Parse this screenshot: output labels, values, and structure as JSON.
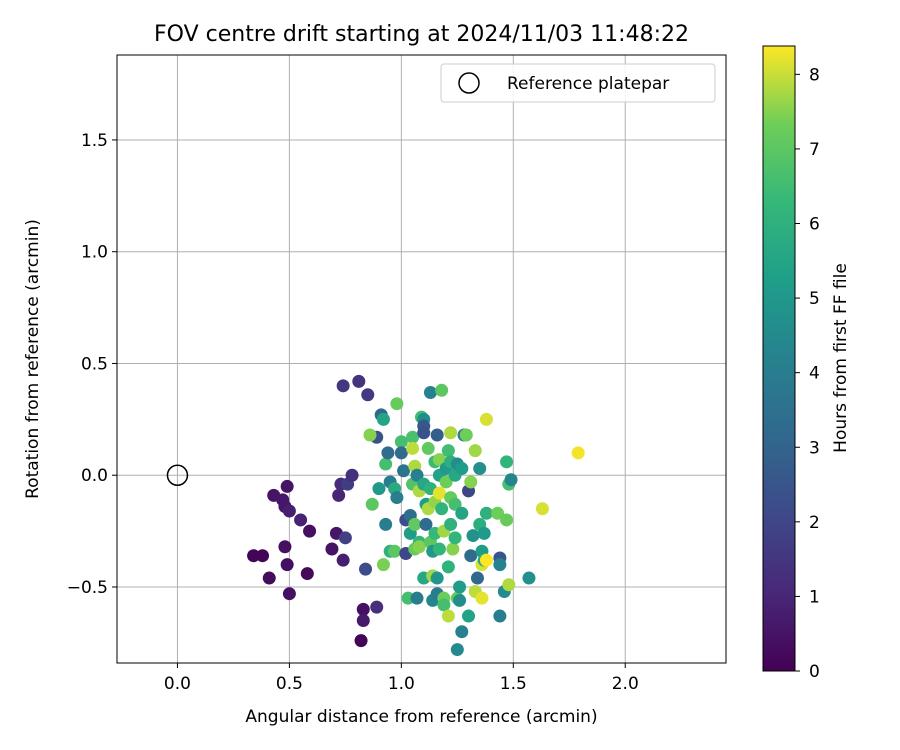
{
  "chart_data": {
    "type": "scatter",
    "title": "FOV centre drift starting at 2024/11/03 11:48:22",
    "xlabel": "Angular distance from reference (arcmin)",
    "ylabel": "Rotation from reference (arcmin)",
    "xlim": [
      -0.27,
      2.45
    ],
    "ylim": [
      -0.84,
      1.88
    ],
    "xticks": [
      0.0,
      0.5,
      1.0,
      1.5,
      2.0
    ],
    "xtick_labels": [
      "0.0",
      "0.5",
      "1.0",
      "1.5",
      "2.0"
    ],
    "yticks": [
      -0.5,
      0.0,
      0.5,
      1.0,
      1.5
    ],
    "ytick_labels": [
      "−0.5",
      "0.0",
      "0.5",
      "1.0",
      "1.5"
    ],
    "grid": true,
    "legend": {
      "position": "top-right",
      "entries": [
        "Reference platepar"
      ]
    },
    "reference_point": {
      "x": 0.0,
      "y": 0.0
    },
    "colorbar": {
      "label": "Hours from first FF file",
      "colormap": "viridis",
      "min": 0,
      "max": 8.38,
      "ticks": [
        0,
        1,
        2,
        3,
        4,
        5,
        6,
        7,
        8
      ],
      "tick_labels": [
        "0",
        "1",
        "2",
        "3",
        "4",
        "5",
        "6",
        "7",
        "8"
      ]
    },
    "points": [
      {
        "x": 0.34,
        "y": -0.36,
        "t": 0.1
      },
      {
        "x": 0.38,
        "y": -0.36,
        "t": 0.1
      },
      {
        "x": 0.41,
        "y": -0.46,
        "t": 0.3
      },
      {
        "x": 0.43,
        "y": -0.09,
        "t": 0.5
      },
      {
        "x": 0.47,
        "y": -0.11,
        "t": 0.6
      },
      {
        "x": 0.49,
        "y": -0.05,
        "t": 0.5
      },
      {
        "x": 0.48,
        "y": -0.14,
        "t": 0.6
      },
      {
        "x": 0.5,
        "y": -0.16,
        "t": 0.8
      },
      {
        "x": 0.48,
        "y": -0.32,
        "t": 0.4
      },
      {
        "x": 0.49,
        "y": -0.4,
        "t": 0.4
      },
      {
        "x": 0.5,
        "y": -0.53,
        "t": 0.4
      },
      {
        "x": 0.55,
        "y": -0.2,
        "t": 0.9
      },
      {
        "x": 0.58,
        "y": -0.44,
        "t": 0.2
      },
      {
        "x": 0.59,
        "y": -0.25,
        "t": 0.4
      },
      {
        "x": 0.69,
        "y": -0.33,
        "t": 0.5
      },
      {
        "x": 0.71,
        "y": -0.26,
        "t": 0.6
      },
      {
        "x": 0.72,
        "y": -0.09,
        "t": 1.0
      },
      {
        "x": 0.73,
        "y": -0.04,
        "t": 1.2
      },
      {
        "x": 0.74,
        "y": -0.38,
        "t": 0.8
      },
      {
        "x": 0.75,
        "y": -0.28,
        "t": 1.8
      },
      {
        "x": 0.76,
        "y": -0.04,
        "t": 1.7
      },
      {
        "x": 0.78,
        "y": 0.0,
        "t": 1.3
      },
      {
        "x": 0.74,
        "y": 0.4,
        "t": 1.5
      },
      {
        "x": 0.81,
        "y": 0.42,
        "t": 1.4
      },
      {
        "x": 0.85,
        "y": 0.36,
        "t": 1.6
      },
      {
        "x": 0.82,
        "y": -0.74,
        "t": 0.1
      },
      {
        "x": 0.83,
        "y": -0.6,
        "t": 0.4
      },
      {
        "x": 0.83,
        "y": -0.65,
        "t": 0.7
      },
      {
        "x": 0.84,
        "y": -0.42,
        "t": 2.2
      },
      {
        "x": 0.89,
        "y": -0.59,
        "t": 1.3
      },
      {
        "x": 0.89,
        "y": 0.17,
        "t": 2.4
      },
      {
        "x": 0.91,
        "y": 0.27,
        "t": 3.2
      },
      {
        "x": 0.92,
        "y": 0.25,
        "t": 5.5
      },
      {
        "x": 0.86,
        "y": 0.18,
        "t": 7.5
      },
      {
        "x": 0.87,
        "y": -0.13,
        "t": 7.0
      },
      {
        "x": 0.9,
        "y": -0.06,
        "t": 5.0
      },
      {
        "x": 0.92,
        "y": -0.4,
        "t": 7.4
      },
      {
        "x": 0.93,
        "y": -0.22,
        "t": 4.0
      },
      {
        "x": 0.93,
        "y": 0.05,
        "t": 6.6
      },
      {
        "x": 0.94,
        "y": 0.1,
        "t": 3.3
      },
      {
        "x": 0.95,
        "y": -0.03,
        "t": 3.9
      },
      {
        "x": 0.95,
        "y": -0.34,
        "t": 6.0
      },
      {
        "x": 0.97,
        "y": -0.34,
        "t": 7.0
      },
      {
        "x": 0.97,
        "y": -0.06,
        "t": 5.7
      },
      {
        "x": 0.98,
        "y": 0.32,
        "t": 7.2
      },
      {
        "x": 0.98,
        "y": -0.1,
        "t": 4.0
      },
      {
        "x": 1.0,
        "y": 0.15,
        "t": 6.6
      },
      {
        "x": 1.0,
        "y": 0.1,
        "t": 3.3
      },
      {
        "x": 1.01,
        "y": 0.02,
        "t": 3.6
      },
      {
        "x": 1.02,
        "y": -0.2,
        "t": 2.2
      },
      {
        "x": 1.02,
        "y": -0.35,
        "t": 2.0
      },
      {
        "x": 1.03,
        "y": -0.55,
        "t": 6.6
      },
      {
        "x": 1.04,
        "y": -0.26,
        "t": 5.2
      },
      {
        "x": 1.04,
        "y": -0.18,
        "t": 3.3
      },
      {
        "x": 1.05,
        "y": 0.17,
        "t": 6.7
      },
      {
        "x": 1.05,
        "y": 0.12,
        "t": 7.9
      },
      {
        "x": 1.05,
        "y": -0.04,
        "t": 6.8
      },
      {
        "x": 1.06,
        "y": 0.04,
        "t": 7.8
      },
      {
        "x": 1.06,
        "y": -0.22,
        "t": 7.1
      },
      {
        "x": 1.06,
        "y": -0.33,
        "t": 7.2
      },
      {
        "x": 1.07,
        "y": -0.55,
        "t": 3.9
      },
      {
        "x": 1.07,
        "y": 0.0,
        "t": 4.1
      },
      {
        "x": 1.08,
        "y": -0.07,
        "t": 7.8
      },
      {
        "x": 1.08,
        "y": -0.3,
        "t": 6.2
      },
      {
        "x": 1.08,
        "y": -0.32,
        "t": 7.5
      },
      {
        "x": 1.09,
        "y": 0.26,
        "t": 6.5
      },
      {
        "x": 1.1,
        "y": 0.25,
        "t": 4.6
      },
      {
        "x": 1.1,
        "y": 0.22,
        "t": 2.6
      },
      {
        "x": 1.1,
        "y": 0.19,
        "t": 2.4
      },
      {
        "x": 1.1,
        "y": -0.04,
        "t": 5.6
      },
      {
        "x": 1.1,
        "y": -0.46,
        "t": 5.6
      },
      {
        "x": 1.11,
        "y": -0.13,
        "t": 5.2
      },
      {
        "x": 1.11,
        "y": -0.22,
        "t": 3.3
      },
      {
        "x": 1.12,
        "y": 0.12,
        "t": 7.1
      },
      {
        "x": 1.12,
        "y": -0.15,
        "t": 7.8
      },
      {
        "x": 1.13,
        "y": 0.37,
        "t": 4.2
      },
      {
        "x": 1.13,
        "y": -0.06,
        "t": 6.0
      },
      {
        "x": 1.13,
        "y": -0.3,
        "t": 7.0
      },
      {
        "x": 1.14,
        "y": -0.34,
        "t": 5.0
      },
      {
        "x": 1.14,
        "y": -0.45,
        "t": 7.7
      },
      {
        "x": 1.14,
        "y": -0.56,
        "t": 4.3
      },
      {
        "x": 1.15,
        "y": 0.06,
        "t": 6.4
      },
      {
        "x": 1.15,
        "y": -0.12,
        "t": 7.6
      },
      {
        "x": 1.15,
        "y": -0.26,
        "t": 6.3
      },
      {
        "x": 1.16,
        "y": 0.18,
        "t": 2.8
      },
      {
        "x": 1.16,
        "y": -0.46,
        "t": 4.9
      },
      {
        "x": 1.16,
        "y": -0.53,
        "t": 3.9
      },
      {
        "x": 1.17,
        "y": 0.07,
        "t": 7.5
      },
      {
        "x": 1.17,
        "y": 0.0,
        "t": 5.4
      },
      {
        "x": 1.17,
        "y": -0.08,
        "t": 8.2
      },
      {
        "x": 1.17,
        "y": -0.33,
        "t": 6.2
      },
      {
        "x": 1.18,
        "y": 0.38,
        "t": 7.0
      },
      {
        "x": 1.18,
        "y": -0.15,
        "t": 6.1
      },
      {
        "x": 1.19,
        "y": -0.25,
        "t": 7.7
      },
      {
        "x": 1.19,
        "y": -0.55,
        "t": 7.3
      },
      {
        "x": 1.19,
        "y": -0.58,
        "t": 6.6
      },
      {
        "x": 1.2,
        "y": 0.03,
        "t": 5.1
      },
      {
        "x": 1.2,
        "y": -0.03,
        "t": 7.3
      },
      {
        "x": 1.21,
        "y": 0.11,
        "t": 6.5
      },
      {
        "x": 1.21,
        "y": -0.41,
        "t": 6.1
      },
      {
        "x": 1.21,
        "y": -0.63,
        "t": 7.9
      },
      {
        "x": 1.22,
        "y": 0.19,
        "t": 7.8
      },
      {
        "x": 1.22,
        "y": 0.06,
        "t": 5.9
      },
      {
        "x": 1.22,
        "y": -0.1,
        "t": 7.2
      },
      {
        "x": 1.22,
        "y": -0.22,
        "t": 6.0
      },
      {
        "x": 1.23,
        "y": -0.33,
        "t": 7.5
      },
      {
        "x": 1.24,
        "y": 0.0,
        "t": 5.6
      },
      {
        "x": 1.24,
        "y": -0.13,
        "t": 6.6
      },
      {
        "x": 1.24,
        "y": -0.28,
        "t": 6.2
      },
      {
        "x": 1.25,
        "y": 0.05,
        "t": 4.6
      },
      {
        "x": 1.25,
        "y": -0.55,
        "t": 7.2
      },
      {
        "x": 1.25,
        "y": -0.78,
        "t": 4.5
      },
      {
        "x": 1.26,
        "y": -0.5,
        "t": 5.2
      },
      {
        "x": 1.26,
        "y": -0.56,
        "t": 4.6
      },
      {
        "x": 1.27,
        "y": 0.03,
        "t": 5.2
      },
      {
        "x": 1.27,
        "y": -0.17,
        "t": 5.5
      },
      {
        "x": 1.27,
        "y": -0.7,
        "t": 4.1
      },
      {
        "x": 1.28,
        "y": 0.18,
        "t": 3.9
      },
      {
        "x": 1.29,
        "y": 0.18,
        "t": 7.3
      },
      {
        "x": 1.3,
        "y": -0.07,
        "t": 2.0
      },
      {
        "x": 1.3,
        "y": -0.63,
        "t": 5.4
      },
      {
        "x": 1.31,
        "y": -0.03,
        "t": 7.5
      },
      {
        "x": 1.31,
        "y": -0.36,
        "t": 3.3
      },
      {
        "x": 1.32,
        "y": -0.27,
        "t": 4.8
      },
      {
        "x": 1.33,
        "y": 0.11,
        "t": 7.7
      },
      {
        "x": 1.33,
        "y": -0.52,
        "t": 7.9
      },
      {
        "x": 1.34,
        "y": -0.46,
        "t": 3.1
      },
      {
        "x": 1.35,
        "y": 0.03,
        "t": 4.7
      },
      {
        "x": 1.35,
        "y": -0.22,
        "t": 5.9
      },
      {
        "x": 1.36,
        "y": -0.34,
        "t": 5.2
      },
      {
        "x": 1.36,
        "y": -0.4,
        "t": 8.1
      },
      {
        "x": 1.36,
        "y": -0.55,
        "t": 8.2
      },
      {
        "x": 1.37,
        "y": -0.26,
        "t": 5.1
      },
      {
        "x": 1.37,
        "y": -0.38,
        "t": 5.6
      },
      {
        "x": 1.38,
        "y": 0.25,
        "t": 8.1
      },
      {
        "x": 1.38,
        "y": -0.17,
        "t": 6.0
      },
      {
        "x": 1.38,
        "y": -0.38,
        "t": 8.4
      },
      {
        "x": 1.43,
        "y": -0.17,
        "t": 7.3
      },
      {
        "x": 1.44,
        "y": -0.37,
        "t": 2.5
      },
      {
        "x": 1.44,
        "y": -0.4,
        "t": 4.2
      },
      {
        "x": 1.44,
        "y": -0.63,
        "t": 4.0
      },
      {
        "x": 1.46,
        "y": -0.52,
        "t": 4.5
      },
      {
        "x": 1.47,
        "y": 0.06,
        "t": 6.2
      },
      {
        "x": 1.47,
        "y": -0.2,
        "t": 7.2
      },
      {
        "x": 1.48,
        "y": -0.04,
        "t": 6.6
      },
      {
        "x": 1.48,
        "y": -0.49,
        "t": 7.8
      },
      {
        "x": 1.49,
        "y": -0.02,
        "t": 4.3
      },
      {
        "x": 1.57,
        "y": -0.46,
        "t": 4.7
      },
      {
        "x": 1.63,
        "y": -0.15,
        "t": 8.1
      },
      {
        "x": 1.79,
        "y": 0.1,
        "t": 8.3
      }
    ]
  }
}
